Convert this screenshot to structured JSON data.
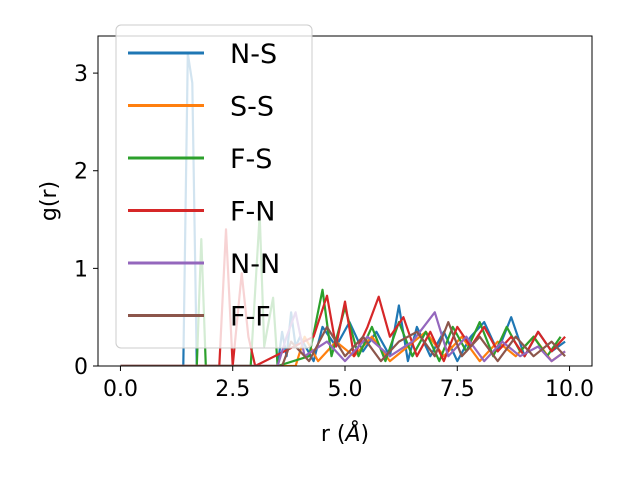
{
  "chart_data": {
    "type": "line",
    "xlabel": "r (",
    "xlabel_unit": "Å",
    "xlabel_close": ")",
    "ylabel": "g(r)",
    "xlim": [
      -0.5,
      10.5
    ],
    "ylim": [
      0,
      3.38
    ],
    "xticks": [
      0.0,
      2.5,
      5.0,
      7.5,
      10.0
    ],
    "xtick_labels": [
      "0.0",
      "2.5",
      "5.0",
      "7.5",
      "10.0"
    ],
    "yticks": [
      0,
      1,
      2,
      3
    ],
    "ytick_labels": [
      "0",
      "1",
      "2",
      "3"
    ],
    "grid": false,
    "legend_position": "upper-left",
    "series": [
      {
        "name": "N-S",
        "color": "#1f77b4",
        "points": [
          [
            0,
            0
          ],
          [
            1.4,
            0
          ],
          [
            1.5,
            3.2
          ],
          [
            1.6,
            2.9
          ],
          [
            1.7,
            0
          ],
          [
            3.5,
            0
          ],
          [
            3.6,
            0.35
          ],
          [
            3.7,
            0.1
          ],
          [
            3.8,
            0.55
          ],
          [
            3.9,
            0.2
          ],
          [
            4.0,
            0.3
          ],
          [
            4.3,
            0.05
          ],
          [
            4.5,
            0.4
          ],
          [
            4.8,
            0.2
          ],
          [
            5.1,
            0.45
          ],
          [
            5.4,
            0.15
          ],
          [
            5.7,
            0.35
          ],
          [
            6.0,
            0.1
          ],
          [
            6.2,
            0.62
          ],
          [
            6.4,
            0.05
          ],
          [
            6.6,
            0.4
          ],
          [
            6.9,
            0.1
          ],
          [
            7.2,
            0.35
          ],
          [
            7.5,
            0.05
          ],
          [
            7.8,
            0.3
          ],
          [
            8.1,
            0.45
          ],
          [
            8.4,
            0.15
          ],
          [
            8.7,
            0.5
          ],
          [
            9.0,
            0.1
          ],
          [
            9.3,
            0.35
          ],
          [
            9.6,
            0.15
          ],
          [
            9.9,
            0.25
          ]
        ]
      },
      {
        "name": "S-S",
        "color": "#ff7f0e",
        "points": [
          [
            0,
            0
          ],
          [
            3.9,
            0
          ],
          [
            4.1,
            0.3
          ],
          [
            4.4,
            0.05
          ],
          [
            4.8,
            0.25
          ],
          [
            5.2,
            0.1
          ],
          [
            5.6,
            0.3
          ],
          [
            6.0,
            0.05
          ],
          [
            6.4,
            0.2
          ],
          [
            6.8,
            0.35
          ],
          [
            7.2,
            0.1
          ],
          [
            7.6,
            0.3
          ],
          [
            8.0,
            0.05
          ],
          [
            8.4,
            0.25
          ],
          [
            8.8,
            0.1
          ],
          [
            9.2,
            0.3
          ],
          [
            9.6,
            0.05
          ],
          [
            9.9,
            0.15
          ]
        ]
      },
      {
        "name": "F-S",
        "color": "#2ca02c",
        "points": [
          [
            0,
            0
          ],
          [
            1.7,
            0
          ],
          [
            1.8,
            1.3
          ],
          [
            1.9,
            0
          ],
          [
            2.9,
            0
          ],
          [
            3.1,
            1.55
          ],
          [
            3.2,
            0.2
          ],
          [
            3.4,
            0.7
          ],
          [
            3.5,
            0
          ],
          [
            4.2,
            0.1
          ],
          [
            4.5,
            0.78
          ],
          [
            4.7,
            0.1
          ],
          [
            5.0,
            0.6
          ],
          [
            5.3,
            0.1
          ],
          [
            5.6,
            0.4
          ],
          [
            5.9,
            0.05
          ],
          [
            6.2,
            0.45
          ],
          [
            6.5,
            0.1
          ],
          [
            6.8,
            0.35
          ],
          [
            7.1,
            0.05
          ],
          [
            7.4,
            0.4
          ],
          [
            7.7,
            0.15
          ],
          [
            8.0,
            0.45
          ],
          [
            8.3,
            0.1
          ],
          [
            8.6,
            0.4
          ],
          [
            8.9,
            0.15
          ],
          [
            9.2,
            0.3
          ],
          [
            9.5,
            0.1
          ],
          [
            9.8,
            0.3
          ]
        ]
      },
      {
        "name": "F-N",
        "color": "#d62728",
        "points": [
          [
            0,
            0
          ],
          [
            2.2,
            0
          ],
          [
            2.35,
            1.4
          ],
          [
            2.5,
            0
          ],
          [
            2.7,
            0.95
          ],
          [
            2.85,
            0.3
          ],
          [
            3.0,
            0
          ],
          [
            4.3,
            0.3
          ],
          [
            4.6,
            0.72
          ],
          [
            4.8,
            0.2
          ],
          [
            5.0,
            0.66
          ],
          [
            5.2,
            0.1
          ],
          [
            5.5,
            0.4
          ],
          [
            5.75,
            0.71
          ],
          [
            6.0,
            0.3
          ],
          [
            6.3,
            0.5
          ],
          [
            6.6,
            0.1
          ],
          [
            6.9,
            0.35
          ],
          [
            7.2,
            0.05
          ],
          [
            7.5,
            0.4
          ],
          [
            7.8,
            0.2
          ],
          [
            8.1,
            0.4
          ],
          [
            8.4,
            0.15
          ],
          [
            8.7,
            0.3
          ],
          [
            9.0,
            0.1
          ],
          [
            9.3,
            0.35
          ],
          [
            9.6,
            0.15
          ],
          [
            9.9,
            0.3
          ]
        ]
      },
      {
        "name": "N-N",
        "color": "#9467bd",
        "points": [
          [
            0,
            0
          ],
          [
            3.5,
            0
          ],
          [
            3.7,
            0.3
          ],
          [
            3.9,
            0.55
          ],
          [
            4.1,
            0.1
          ],
          [
            4.6,
            0.25
          ],
          [
            5.0,
            0.05
          ],
          [
            5.5,
            0.3
          ],
          [
            6.0,
            0.1
          ],
          [
            6.5,
            0.25
          ],
          [
            7.0,
            0.55
          ],
          [
            7.3,
            0.1
          ],
          [
            7.7,
            0.3
          ],
          [
            8.1,
            0.05
          ],
          [
            8.5,
            0.25
          ],
          [
            8.9,
            0.1
          ],
          [
            9.3,
            0.2
          ],
          [
            9.6,
            0.05
          ],
          [
            9.9,
            0.15
          ]
        ]
      },
      {
        "name": "F-F",
        "color": "#8c564b",
        "points": [
          [
            0,
            0
          ],
          [
            3.6,
            0
          ],
          [
            3.8,
            0.25
          ],
          [
            4.2,
            0.05
          ],
          [
            4.6,
            0.4
          ],
          [
            5.0,
            0.1
          ],
          [
            5.4,
            0.3
          ],
          [
            5.8,
            0.05
          ],
          [
            6.2,
            0.25
          ],
          [
            6.6,
            0.35
          ],
          [
            7.0,
            0.1
          ],
          [
            7.3,
            0.45
          ],
          [
            7.6,
            0.1
          ],
          [
            8.0,
            0.3
          ],
          [
            8.4,
            0.05
          ],
          [
            8.8,
            0.3
          ],
          [
            9.2,
            0.1
          ],
          [
            9.6,
            0.25
          ],
          [
            9.9,
            0.1
          ]
        ]
      }
    ]
  }
}
